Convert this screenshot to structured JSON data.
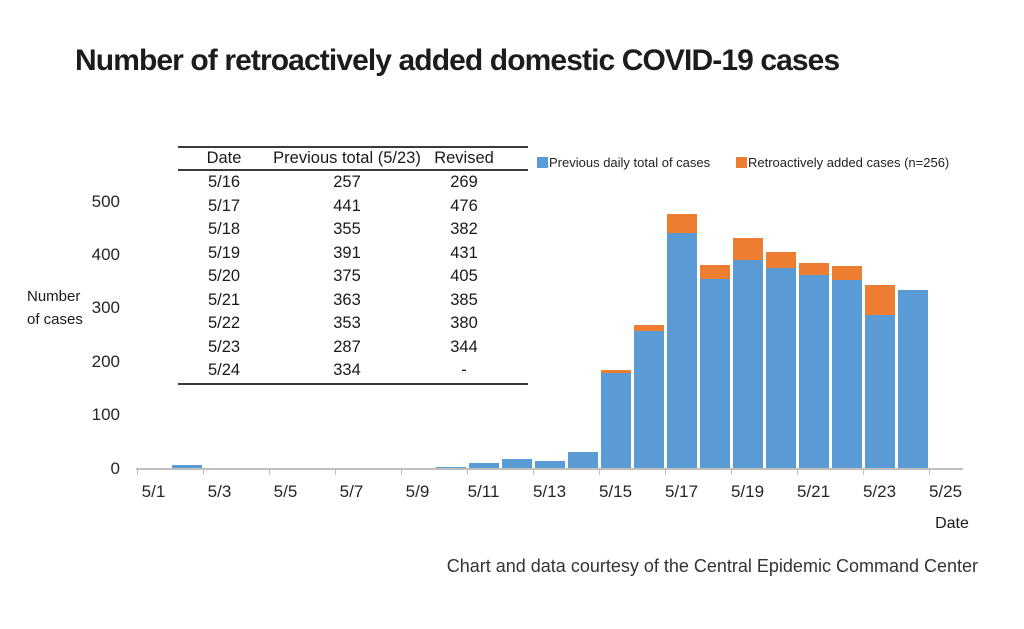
{
  "title": "Number of retroactively added domestic COVID-19 cases",
  "caption": "Chart and data courtesy of the Central Epidemic Command Center",
  "table": {
    "headers": [
      "Date",
      "Previous total (5/23)",
      "Revised"
    ],
    "rows": [
      [
        "5/16",
        "257",
        "269"
      ],
      [
        "5/17",
        "441",
        "476"
      ],
      [
        "5/18",
        "355",
        "382"
      ],
      [
        "5/19",
        "391",
        "431"
      ],
      [
        "5/20",
        "375",
        "405"
      ],
      [
        "5/21",
        "363",
        "385"
      ],
      [
        "5/22",
        "353",
        "380"
      ],
      [
        "5/23",
        "287",
        "344"
      ],
      [
        "5/24",
        "334",
        "-"
      ]
    ]
  },
  "legend": {
    "items": [
      {
        "label": "Previous daily total of cases",
        "color": "#5B9BD5"
      },
      {
        "label": "Retroactively added cases (n=256)",
        "color": "#ED7D31"
      }
    ]
  },
  "chart_data": {
    "type": "bar",
    "stacked": true,
    "title": "Number of retroactively added domestic COVID-19 cases",
    "xlabel": "Date",
    "ylabel": "Number of cases",
    "ylabel_lines": [
      "Number",
      "of cases"
    ],
    "ylim": [
      0,
      500
    ],
    "y_ticks": [
      0,
      100,
      200,
      300,
      400,
      500
    ],
    "x_tick_labels": [
      "5/1",
      "5/3",
      "5/5",
      "5/7",
      "5/9",
      "5/11",
      "5/13",
      "5/15",
      "5/17",
      "5/19",
      "5/21",
      "5/23",
      "5/25"
    ],
    "grid": false,
    "legend_position": "top-right",
    "categories": [
      "5/1",
      "5/2",
      "5/3",
      "5/4",
      "5/5",
      "5/6",
      "5/7",
      "5/8",
      "5/9",
      "5/10",
      "5/11",
      "5/12",
      "5/13",
      "5/14",
      "5/15",
      "5/16",
      "5/17",
      "5/18",
      "5/19",
      "5/20",
      "5/21",
      "5/22",
      "5/23",
      "5/24",
      "5/25"
    ],
    "series": [
      {
        "name": "Previous daily total of cases",
        "color": "#5B9BD5",
        "values": [
          1,
          6,
          0,
          0,
          0,
          0,
          0,
          0,
          1,
          3,
          10,
          18,
          14,
          31,
          179,
          257,
          441,
          355,
          391,
          375,
          363,
          353,
          287,
          334,
          0
        ]
      },
      {
        "name": "Retroactively added cases (n=256)",
        "color": "#ED7D31",
        "values": [
          0,
          0,
          0,
          0,
          0,
          0,
          0,
          0,
          0,
          0,
          0,
          0,
          0,
          0,
          6,
          12,
          35,
          27,
          40,
          30,
          22,
          27,
          57,
          0,
          0
        ]
      }
    ]
  }
}
